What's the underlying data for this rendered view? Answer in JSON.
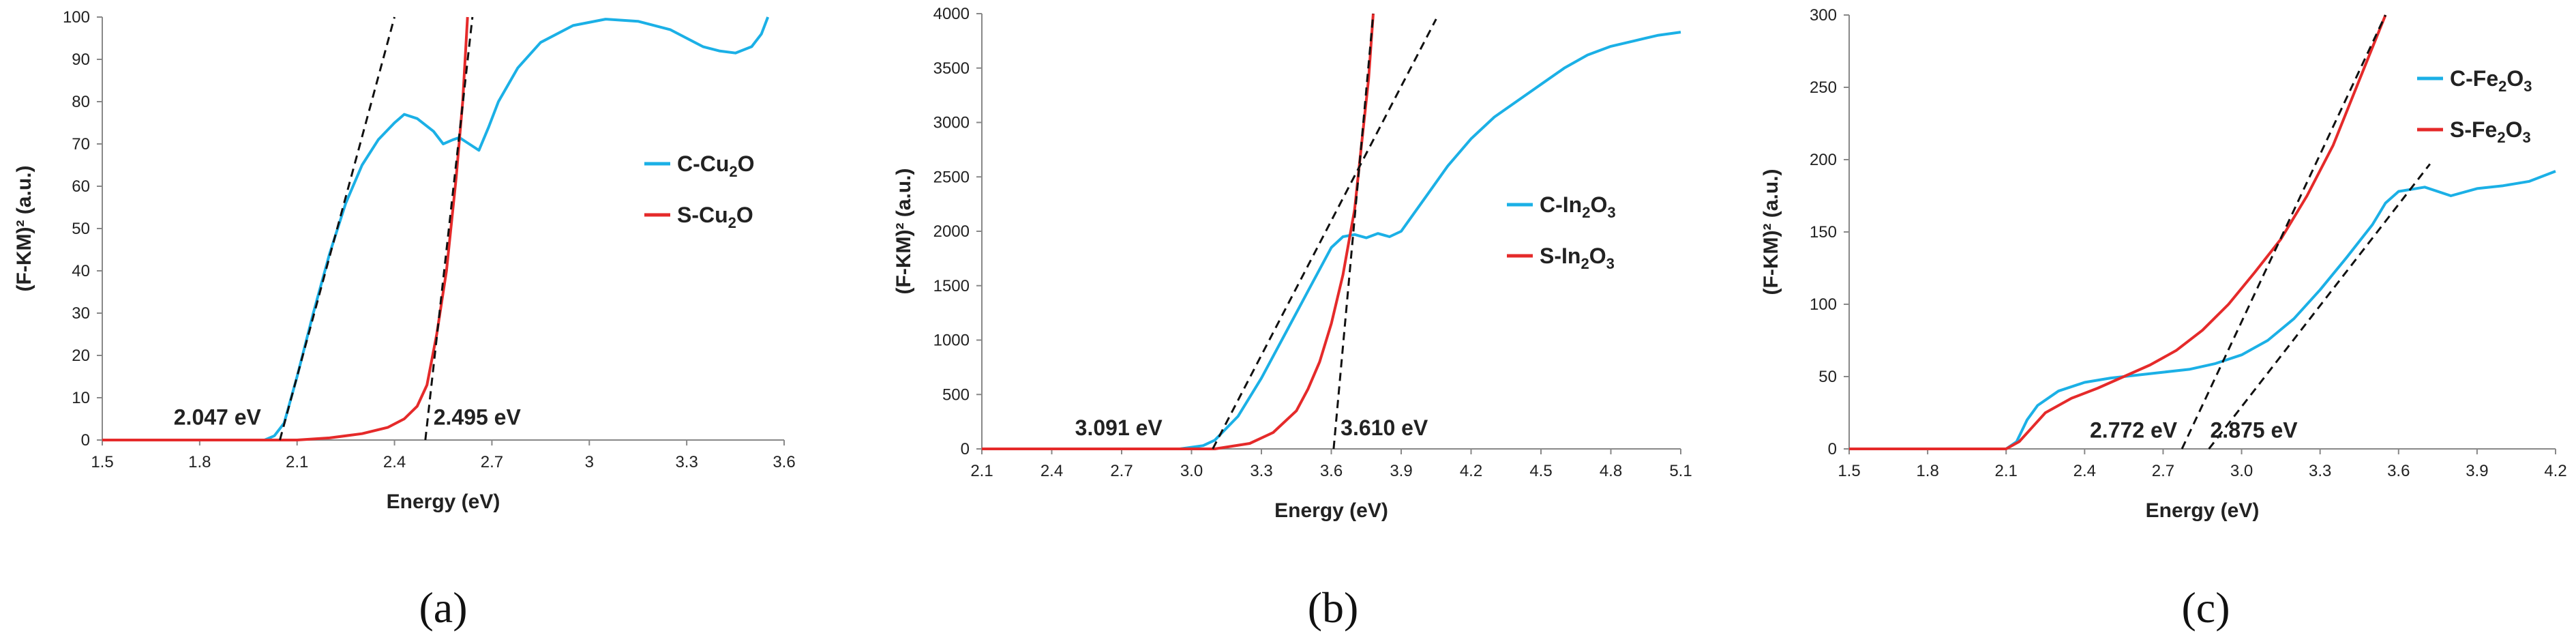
{
  "colors": {
    "c_series": "#1BB0E6",
    "s_series": "#E52A2A",
    "tangent": "#111111",
    "axis": "#888888"
  },
  "chart_data": [
    {
      "type": "line",
      "panel_label": "(a)",
      "xlabel": "Energy (eV)",
      "ylabel": "(F-KM)² (a.u.)",
      "xlim": [
        1.5,
        3.6
      ],
      "ylim": [
        0,
        100
      ],
      "xticks": [
        "1.5",
        "1.8",
        "2.1",
        "2.4",
        "2.7",
        "3",
        "3.3",
        "3.6"
      ],
      "yticks": [
        "0",
        "10",
        "20",
        "30",
        "40",
        "50",
        "60",
        "70",
        "80",
        "90",
        "100"
      ],
      "legend": {
        "position": "right",
        "entries": [
          {
            "series": "C",
            "base": "C-Cu",
            "sub1": "2",
            "mid": "O",
            "sub2": ""
          },
          {
            "series": "S",
            "base": "S-Cu",
            "sub1": "2",
            "mid": "O",
            "sub2": ""
          }
        ]
      },
      "series": [
        {
          "name": "C-Cu2O",
          "color_key": "c_series",
          "points": [
            [
              1.5,
              0
            ],
            [
              2.0,
              0
            ],
            [
              2.03,
              1
            ],
            [
              2.06,
              4
            ],
            [
              2.1,
              15
            ],
            [
              2.15,
              30
            ],
            [
              2.2,
              44
            ],
            [
              2.25,
              56
            ],
            [
              2.3,
              65
            ],
            [
              2.35,
              71
            ],
            [
              2.4,
              75
            ],
            [
              2.43,
              77
            ],
            [
              2.47,
              76
            ],
            [
              2.52,
              73
            ],
            [
              2.55,
              70
            ],
            [
              2.58,
              71
            ],
            [
              2.6,
              71.5
            ],
            [
              2.63,
              70
            ],
            [
              2.66,
              68.5
            ],
            [
              2.69,
              74
            ],
            [
              2.72,
              80
            ],
            [
              2.78,
              88
            ],
            [
              2.85,
              94
            ],
            [
              2.95,
              98
            ],
            [
              3.05,
              99.5
            ],
            [
              3.15,
              99
            ],
            [
              3.25,
              97
            ],
            [
              3.3,
              95
            ],
            [
              3.35,
              93
            ],
            [
              3.4,
              92
            ],
            [
              3.45,
              91.5
            ],
            [
              3.5,
              93
            ],
            [
              3.53,
              96
            ],
            [
              3.55,
              100
            ]
          ]
        },
        {
          "name": "S-Cu2O",
          "color_key": "s_series",
          "points": [
            [
              1.5,
              0
            ],
            [
              2.1,
              0
            ],
            [
              2.2,
              0.5
            ],
            [
              2.3,
              1.5
            ],
            [
              2.38,
              3
            ],
            [
              2.43,
              5
            ],
            [
              2.47,
              8
            ],
            [
              2.5,
              13
            ],
            [
              2.53,
              25
            ],
            [
              2.56,
              40
            ],
            [
              2.59,
              62
            ],
            [
              2.61,
              80
            ],
            [
              2.625,
              100
            ]
          ]
        }
      ],
      "tangents": [
        {
          "from": [
            2.047,
            0
          ],
          "to": [
            2.4,
            100
          ]
        },
        {
          "from": [
            2.495,
            0
          ],
          "to": [
            2.64,
            100
          ]
        }
      ],
      "annotations": [
        {
          "text": "2.047 eV",
          "at": [
            1.72,
            3
          ]
        },
        {
          "text": "2.495 eV",
          "at": [
            2.52,
            3
          ]
        }
      ]
    },
    {
      "type": "line",
      "panel_label": "(b)",
      "xlabel": "Energy (eV)",
      "ylabel": "(F-KM)² (a.u.)",
      "xlim": [
        2.1,
        5.1
      ],
      "ylim": [
        0,
        4000
      ],
      "xticks": [
        "2.1",
        "2.4",
        "2.7",
        "3.0",
        "3.3",
        "3.6",
        "3.9",
        "4.2",
        "4.5",
        "4.8",
        "5.1"
      ],
      "yticks": [
        "0",
        "500",
        "1000",
        "1500",
        "2000",
        "2500",
        "3000",
        "3500",
        "4000"
      ],
      "legend": {
        "position": "right",
        "entries": [
          {
            "series": "C",
            "base": "C-In",
            "sub1": "2",
            "mid": "O",
            "sub2": "3"
          },
          {
            "series": "S",
            "base": "S-In",
            "sub1": "2",
            "mid": "O",
            "sub2": "3"
          }
        ]
      },
      "series": [
        {
          "name": "C-In2O3",
          "color_key": "c_series",
          "points": [
            [
              2.1,
              0
            ],
            [
              2.95,
              0
            ],
            [
              3.05,
              30
            ],
            [
              3.1,
              80
            ],
            [
              3.2,
              300
            ],
            [
              3.3,
              650
            ],
            [
              3.4,
              1050
            ],
            [
              3.5,
              1450
            ],
            [
              3.55,
              1650
            ],
            [
              3.6,
              1850
            ],
            [
              3.65,
              1950
            ],
            [
              3.7,
              1970
            ],
            [
              3.75,
              1940
            ],
            [
              3.8,
              1980
            ],
            [
              3.85,
              1950
            ],
            [
              3.9,
              2000
            ],
            [
              3.95,
              2150
            ],
            [
              4.0,
              2300
            ],
            [
              4.1,
              2600
            ],
            [
              4.2,
              2850
            ],
            [
              4.3,
              3050
            ],
            [
              4.4,
              3200
            ],
            [
              4.5,
              3350
            ],
            [
              4.6,
              3500
            ],
            [
              4.7,
              3620
            ],
            [
              4.8,
              3700
            ],
            [
              4.9,
              3750
            ],
            [
              5.0,
              3800
            ],
            [
              5.1,
              3830
            ]
          ]
        },
        {
          "name": "S-In2O3",
          "color_key": "s_series",
          "points": [
            [
              2.1,
              0
            ],
            [
              3.1,
              0
            ],
            [
              3.25,
              50
            ],
            [
              3.35,
              150
            ],
            [
              3.45,
              350
            ],
            [
              3.5,
              550
            ],
            [
              3.55,
              800
            ],
            [
              3.6,
              1150
            ],
            [
              3.65,
              1600
            ],
            [
              3.7,
              2200
            ],
            [
              3.73,
              2800
            ],
            [
              3.76,
              3400
            ],
            [
              3.78,
              4000
            ]
          ]
        }
      ],
      "tangents": [
        {
          "from": [
            3.091,
            0
          ],
          "to": [
            4.05,
            3950
          ]
        },
        {
          "from": [
            3.61,
            0
          ],
          "to": [
            3.78,
            4000
          ]
        }
      ],
      "annotations": [
        {
          "text": "3.091 eV",
          "at": [
            2.5,
            100
          ]
        },
        {
          "text": "3.610 eV",
          "at": [
            3.64,
            100
          ]
        }
      ]
    },
    {
      "type": "line",
      "panel_label": "(c)",
      "xlabel": "Energy (eV)",
      "ylabel": "(F-KM)² (a.u.)",
      "xlim": [
        1.5,
        4.2
      ],
      "ylim": [
        0,
        300
      ],
      "xticks": [
        "1.5",
        "1.8",
        "2.1",
        "2.4",
        "2.7",
        "3.0",
        "3.3",
        "3.6",
        "3.9",
        "4.2"
      ],
      "yticks": [
        "0",
        "50",
        "100",
        "150",
        "200",
        "250",
        "300"
      ],
      "legend": {
        "position": "top-right",
        "entries": [
          {
            "series": "C",
            "base": "C-Fe",
            "sub1": "2",
            "mid": "O",
            "sub2": "3"
          },
          {
            "series": "S",
            "base": "S-Fe",
            "sub1": "2",
            "mid": "O",
            "sub2": "3"
          }
        ]
      },
      "series": [
        {
          "name": "C-Fe2O3",
          "color_key": "c_series",
          "points": [
            [
              1.5,
              0
            ],
            [
              2.1,
              0
            ],
            [
              2.14,
              5
            ],
            [
              2.18,
              20
            ],
            [
              2.22,
              30
            ],
            [
              2.3,
              40
            ],
            [
              2.4,
              46
            ],
            [
              2.5,
              49
            ],
            [
              2.6,
              51
            ],
            [
              2.7,
              53
            ],
            [
              2.8,
              55
            ],
            [
              2.9,
              59
            ],
            [
              3.0,
              65
            ],
            [
              3.1,
              75
            ],
            [
              3.2,
              90
            ],
            [
              3.3,
              110
            ],
            [
              3.4,
              132
            ],
            [
              3.5,
              155
            ],
            [
              3.55,
              170
            ],
            [
              3.6,
              178
            ],
            [
              3.7,
              181
            ],
            [
              3.8,
              175
            ],
            [
              3.9,
              180
            ],
            [
              4.0,
              182
            ],
            [
              4.1,
              185
            ],
            [
              4.2,
              192
            ]
          ]
        },
        {
          "name": "S-Fe2O3",
          "color_key": "s_series",
          "points": [
            [
              1.5,
              0
            ],
            [
              2.1,
              0
            ],
            [
              2.15,
              5
            ],
            [
              2.2,
              15
            ],
            [
              2.25,
              25
            ],
            [
              2.35,
              35
            ],
            [
              2.45,
              42
            ],
            [
              2.55,
              50
            ],
            [
              2.65,
              58
            ],
            [
              2.75,
              68
            ],
            [
              2.85,
              82
            ],
            [
              2.95,
              100
            ],
            [
              3.05,
              122
            ],
            [
              3.15,
              145
            ],
            [
              3.25,
              175
            ],
            [
              3.35,
              210
            ],
            [
              3.45,
              255
            ],
            [
              3.55,
              300
            ]
          ]
        }
      ],
      "tangents": [
        {
          "from": [
            2.772,
            0
          ],
          "to": [
            3.55,
            300
          ]
        },
        {
          "from": [
            2.875,
            0
          ],
          "to": [
            3.72,
            197
          ]
        }
      ],
      "annotations": [
        {
          "text": "2.772 eV",
          "at": [
            2.42,
            6
          ]
        },
        {
          "text": "2.875 eV",
          "at": [
            2.88,
            6
          ]
        }
      ]
    }
  ]
}
